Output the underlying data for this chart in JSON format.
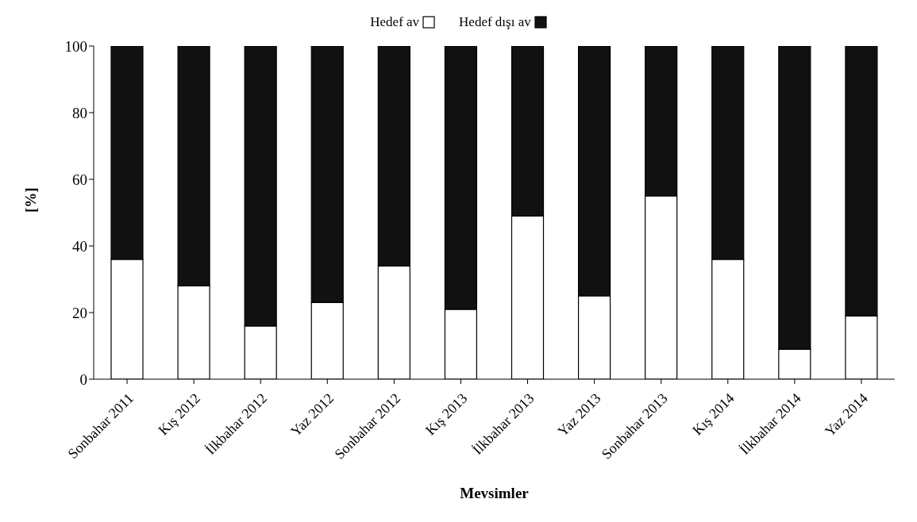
{
  "chart_data": {
    "type": "bar",
    "stacked": true,
    "xlabel": "Mevsimler",
    "ylabel": "[%]",
    "categories": [
      "Sonbahar 2011",
      "Kış 2012",
      "İlkbahar 2012",
      "Yaz 2012",
      "Sonbahar 2012",
      "Kış 2013",
      "İlkbahar 2013",
      "Yaz 2013",
      "Sonbahar 2013",
      "Kış 2014",
      "İlkbahar 2014",
      "Yaz 2014"
    ],
    "series": [
      {
        "name": "Hedef av",
        "color": "#ffffff",
        "values": [
          36,
          28,
          16,
          23,
          34,
          21,
          49,
          25,
          55,
          36,
          9,
          19
        ]
      },
      {
        "name": "Hedef dışı av",
        "color": "#111111",
        "values": [
          64,
          72,
          84,
          77,
          66,
          79,
          51,
          75,
          45,
          64,
          91,
          81
        ]
      }
    ],
    "ylim": [
      0,
      100
    ],
    "yticks": [
      0,
      20,
      40,
      60,
      80,
      100
    ],
    "grid": false,
    "legend": "top"
  }
}
